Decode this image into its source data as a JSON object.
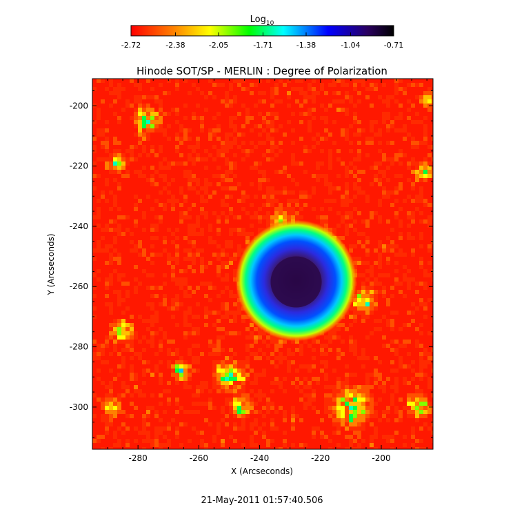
{
  "chart_data": {
    "type": "heatmap",
    "title": "Hinode SOT/SP - MERLIN : Degree of Polarization",
    "xlabel": "X (Arcseconds)",
    "ylabel": "Y (Arcseconds)",
    "xlim": [
      -295,
      -183
    ],
    "ylim": [
      -314,
      -191
    ],
    "xticks": [
      "-280",
      "-260",
      "-240",
      "-220",
      "-200"
    ],
    "yticks": [
      "-200",
      "-220",
      "-240",
      "-260",
      "-280",
      "-300"
    ],
    "xtick_values": [
      -280,
      -260,
      -240,
      -220,
      -200
    ],
    "ytick_values": [
      -200,
      -220,
      -240,
      -260,
      -280,
      -300
    ],
    "colorbar": {
      "label_base": "Log",
      "label_sub": "10",
      "range": [
        -2.72,
        -0.71
      ],
      "tick_labels": [
        "-2.72",
        "-2.38",
        "-2.05",
        "-1.71",
        "-1.38",
        "-1.04",
        "-0.71"
      ],
      "tick_values": [
        -2.72,
        -2.38,
        -2.05,
        -1.71,
        -1.38,
        -1.04,
        -0.71
      ],
      "colors": [
        "#ff0000",
        "#ff8000",
        "#ffff00",
        "#00ff00",
        "#00ffff",
        "#0000ff",
        "#000000"
      ]
    },
    "features": {
      "sunspot_center": [
        -228,
        -258
      ],
      "umbra_radius": 8,
      "penumbra_radius": 15,
      "background_level": -2.5
    },
    "timestamp": "21-May-2011 01:57:40.506"
  }
}
